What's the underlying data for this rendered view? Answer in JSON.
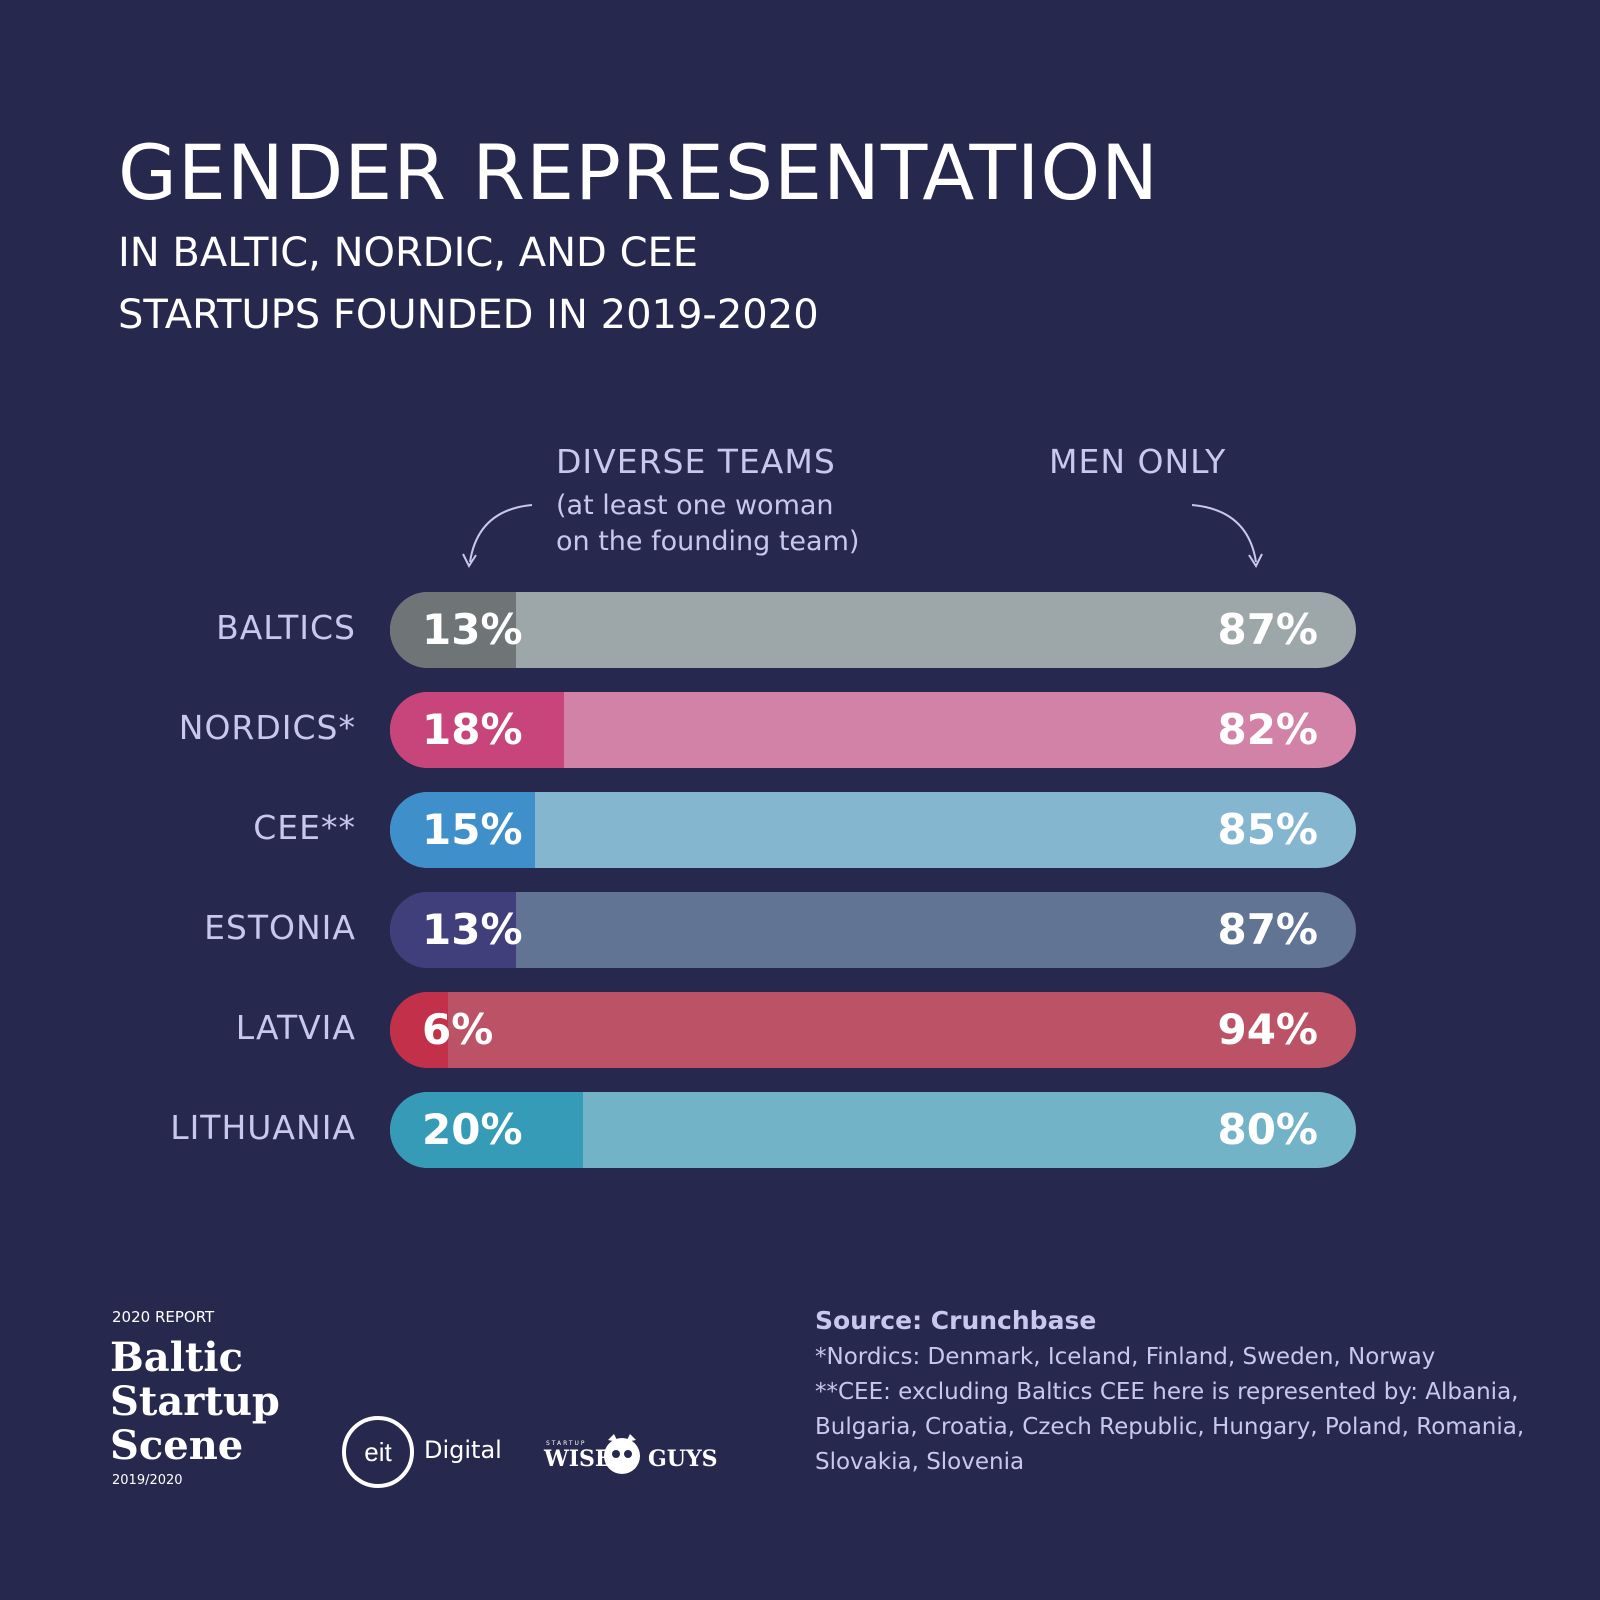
{
  "header": {
    "title": "GENDER REPRESENTATION",
    "subtitle_line1": "IN BALTIC, NORDIC, AND CEE",
    "subtitle_line2": "STARTUPS FOUNDED IN 2019-2020"
  },
  "columns": {
    "diverse_label": "DIVERSE TEAMS",
    "diverse_note_line1": "(at least one woman",
    "diverse_note_line2": "on the founding team)",
    "men_label": "MEN ONLY"
  },
  "chart_data": {
    "type": "bar",
    "stacked": true,
    "orientation": "horizontal",
    "title": "GENDER REPRESENTATION",
    "categories": [
      "BALTICS",
      "NORDICS*",
      "CEE**",
      "ESTONIA",
      "LATVIA",
      "LITHUANIA"
    ],
    "series": [
      {
        "name": "DIVERSE TEAMS",
        "values": [
          13,
          18,
          15,
          13,
          6,
          20
        ]
      },
      {
        "name": "MEN ONLY",
        "values": [
          87,
          82,
          85,
          87,
          94,
          80
        ]
      }
    ],
    "value_labels": {
      "diverse": [
        "13%",
        "18%",
        "15%",
        "13%",
        "6%",
        "20%"
      ],
      "men": [
        "87%",
        "82%",
        "85%",
        "87%",
        "94%",
        "80%"
      ]
    },
    "colors": {
      "diverse": [
        "#6f7577",
        "#c8457b",
        "#3f8fca",
        "#403f7b",
        "#c23149",
        "#359bb7"
      ],
      "men": [
        "#9da6a9",
        "#d382a7",
        "#84b6d0",
        "#617493",
        "#bc5265",
        "#72b3c7"
      ]
    },
    "xlim": [
      0,
      100
    ]
  },
  "footer": {
    "report_label": "2020 REPORT",
    "brand_line1": "Baltic",
    "brand_line2": "Startup",
    "brand_line3": "Scene",
    "brand_year": "2019/2020",
    "eit_logo": "eit",
    "eit_text": "Digital",
    "startup_tiny": "STARTUP",
    "wise": "WISE",
    "guys": "GUYS",
    "source": "Source: Crunchbase",
    "note1": "*Nordics: Denmark, Iceland, Finland, Sweden, Norway",
    "note2": "**CEE: excluding Baltics CEE here is represented by: Albania,",
    "note3": "Bulgaria, Croatia, Czech Republic, Hungary, Poland, Romania,",
    "note4": "Slovakia, Slovenia"
  }
}
